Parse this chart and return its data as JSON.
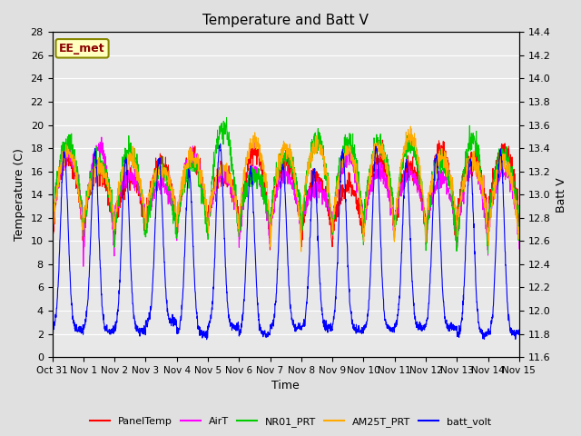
{
  "title": "Temperature and Batt V",
  "ylabel_left": "Temperature (C)",
  "ylabel_right": "Batt V",
  "xlabel": "Time",
  "annotation": "EE_met",
  "ylim_left": [
    0,
    28
  ],
  "ylim_right": [
    11.6,
    14.4
  ],
  "xtick_labels": [
    "Oct 31",
    "Nov 1",
    "Nov 2",
    "Nov 3",
    "Nov 4",
    "Nov 5",
    "Nov 6",
    "Nov 7",
    "Nov 8",
    "Nov 9",
    "Nov 10",
    "Nov 11",
    "Nov 12",
    "Nov 13",
    "Nov 14",
    "Nov 15"
  ],
  "legend_labels": [
    "PanelTemp",
    "AirT",
    "NR01_PRT",
    "AM25T_PRT",
    "batt_volt"
  ],
  "legend_colors": [
    "#ff0000",
    "#ff00ff",
    "#00cc00",
    "#ffaa00",
    "#0000ff"
  ],
  "fig_bg_color": "#e0e0e0",
  "plot_bg_color": "#e8e8e8",
  "grid_color": "#ffffff",
  "n_days": 15,
  "pts_per_day": 144,
  "left_yticks": [
    0,
    2,
    4,
    6,
    8,
    10,
    12,
    14,
    16,
    18,
    20,
    22,
    24,
    26,
    28
  ],
  "right_yticks": [
    11.6,
    11.8,
    12.0,
    12.2,
    12.4,
    12.6,
    12.8,
    13.0,
    13.2,
    13.4,
    13.6,
    13.8,
    14.0,
    14.2,
    14.4
  ]
}
